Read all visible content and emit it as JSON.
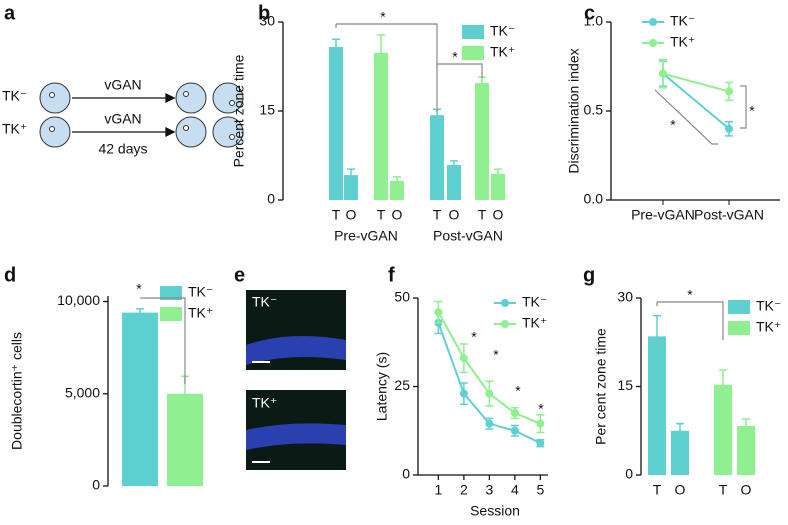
{
  "diagram": {
    "panel": "a",
    "rows": [
      {
        "label": "TK⁻",
        "arrow": "vGAN"
      },
      {
        "label": "TK⁺",
        "arrow": "vGAN",
        "note": "42 days"
      }
    ]
  },
  "images": {
    "panel": "e",
    "labels": [
      "TK⁻",
      "TK⁺"
    ]
  },
  "chart_data": [
    {
      "panel": "b",
      "type": "bar",
      "y_label": "Percent zone time",
      "ylim": [
        0,
        30
      ],
      "yticks": [
        0,
        15,
        30
      ],
      "categories": [
        "T",
        "O",
        "T",
        "O",
        "T",
        "O",
        "T",
        "O"
      ],
      "groups": [
        "Pre-vGAN",
        "Post-vGAN"
      ],
      "series": [
        {
          "name": "TK⁻",
          "color": "#5fd0d0",
          "values": [
            25.8,
            4.2,
            null,
            null,
            14.3,
            5.9,
            null,
            null
          ],
          "errors": [
            1.3,
            1.0,
            null,
            null,
            1.0,
            0.7,
            null,
            null
          ]
        },
        {
          "name": "TK⁺",
          "color": "#8ef08e",
          "values": [
            null,
            null,
            24.8,
            3.2,
            null,
            null,
            19.7,
            4.4
          ],
          "errors": [
            null,
            null,
            3.0,
            0.7,
            null,
            null,
            1.0,
            0.8
          ]
        }
      ],
      "annotations": [
        "*",
        "*"
      ]
    },
    {
      "panel": "c",
      "type": "line",
      "y_label": "Discrimination index",
      "ylim": [
        0,
        1
      ],
      "yticks": [
        {
          "value": 0,
          "label": "0.0"
        },
        {
          "value": 0.5,
          "label": "0.5"
        },
        {
          "value": 1,
          "label": "1.0"
        }
      ],
      "categories": [
        "Pre-vGAN",
        "Post-vGAN"
      ],
      "series": [
        {
          "name": "TK⁻",
          "color": "#5fd0d0",
          "values": [
            0.71,
            0.4
          ],
          "errors": [
            0.07,
            0.04
          ]
        },
        {
          "name": "TK⁺",
          "color": "#8ef08e",
          "values": [
            0.71,
            0.61
          ],
          "errors": [
            0.08,
            0.05
          ]
        }
      ],
      "annotations": [
        "*",
        "*"
      ]
    },
    {
      "panel": "d",
      "type": "bar",
      "y_label": "Doublecortin⁺ cells",
      "ylim": [
        0,
        10300
      ],
      "yticks": [
        0,
        {
          "value": 5000,
          "label": "5,000"
        },
        {
          "value": 10000,
          "label": "10,000"
        }
      ],
      "series": [
        {
          "name": "TK⁻",
          "color": "#5fd0d0",
          "values": [
            9400
          ],
          "errors": [
            200
          ]
        },
        {
          "name": "TK⁺",
          "color": "#8ef08e",
          "values": [
            5000
          ],
          "errors": [
            950
          ]
        }
      ],
      "annotations": [
        "*"
      ]
    },
    {
      "panel": "f",
      "type": "line",
      "y_label": "Latency (s)",
      "x_label": "Session",
      "ylim": [
        0,
        50
      ],
      "yticks": [
        0,
        25,
        50
      ],
      "x": [
        1,
        2,
        3,
        4,
        5
      ],
      "xlim": [
        0.2,
        5.3
      ],
      "xticks": [
        1,
        2,
        3,
        4,
        5
      ],
      "series": [
        {
          "name": "TK⁻",
          "color": "#5fd0d0",
          "values": [
            43,
            23,
            14.5,
            12.5,
            9
          ],
          "errors": [
            3,
            3,
            1.5,
            1.5,
            1
          ]
        },
        {
          "name": "TK⁺",
          "color": "#8ef08e",
          "values": [
            46,
            33,
            23,
            17.5,
            14.5
          ],
          "errors": [
            3,
            4,
            3.5,
            1.5,
            2.5
          ]
        }
      ],
      "annotations": [
        "*",
        "*",
        "*",
        "*"
      ]
    },
    {
      "panel": "g",
      "type": "bar",
      "y_label": "Per cent zone time",
      "ylim": [
        0,
        30
      ],
      "yticks": [
        0,
        15,
        30
      ],
      "categories": [
        "T",
        "O",
        "T",
        "O"
      ],
      "series": [
        {
          "name": "TK⁻",
          "color": "#5fd0d0",
          "values": [
            23.5,
            7.5,
            null,
            null
          ],
          "errors": [
            3.5,
            1.2,
            null,
            null
          ]
        },
        {
          "name": "TK⁺",
          "color": "#8ef08e",
          "values": [
            null,
            null,
            15.3,
            8.3
          ],
          "errors": [
            null,
            null,
            2.5,
            1.2
          ]
        }
      ],
      "annotations": [
        "*"
      ]
    }
  ]
}
